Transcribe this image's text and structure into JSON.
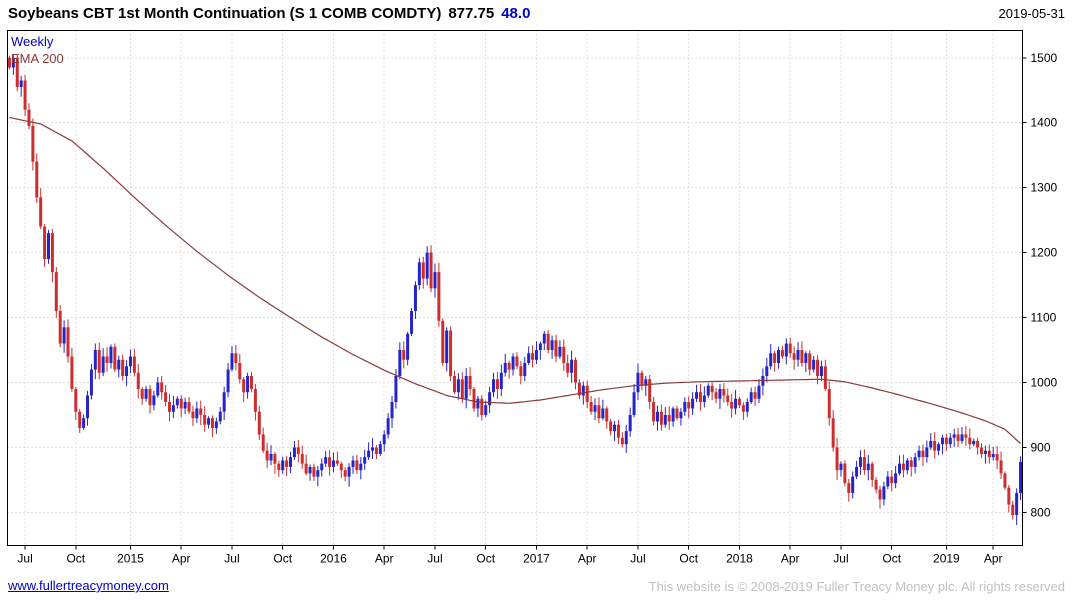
{
  "header": {
    "title": "Soybeans CBT 1st Month Continuation (S 1 COMB COMDTY)",
    "last_price": "877.75",
    "change": "48.0",
    "date": "2019-05-31"
  },
  "legend": {
    "timeframe": "Weekly",
    "indicator": "EMA 200"
  },
  "footer": {
    "link": "www.fullertreacymoney.com",
    "copyright": "This website is © 2008-2019 Fuller Treacy Money plc. All rights reserved"
  },
  "colors": {
    "up": "#2424c8",
    "down": "#cc2e2e",
    "ema": "#8b3a3a",
    "grid": "#c6c6c6",
    "link": "#0000cc",
    "muted": "#c0c0c0",
    "text": "#000000"
  },
  "chart_data": {
    "type": "candlestick",
    "title": "Soybeans CBT 1st Month Continuation (S 1 COMB COMDTY)",
    "timeframe": "Weekly",
    "indicator": "EMA 200",
    "last": 877.75,
    "change": 48.0,
    "date": "2019-05-31",
    "grid": "dotted",
    "y_ticks": [
      800,
      900,
      1000,
      1100,
      1200,
      1300,
      1400,
      1500
    ],
    "y_range": [
      749,
      1542
    ],
    "x_ticks": [
      {
        "label": "Jul",
        "week": 4
      },
      {
        "label": "Oct",
        "week": 17
      },
      {
        "label": "2015",
        "week": 31
      },
      {
        "label": "Apr",
        "week": 44
      },
      {
        "label": "Jul",
        "week": 57
      },
      {
        "label": "Oct",
        "week": 70
      },
      {
        "label": "2016",
        "week": 83
      },
      {
        "label": "Apr",
        "week": 96
      },
      {
        "label": "Jul",
        "week": 109
      },
      {
        "label": "Oct",
        "week": 122
      },
      {
        "label": "2017",
        "week": 135
      },
      {
        "label": "Apr",
        "week": 148
      },
      {
        "label": "Jul",
        "week": 161
      },
      {
        "label": "Oct",
        "week": 174
      },
      {
        "label": "2018",
        "week": 187
      },
      {
        "label": "Apr",
        "week": 200
      },
      {
        "label": "Jul",
        "week": 213
      },
      {
        "label": "Oct",
        "week": 226
      },
      {
        "label": "2019",
        "week": 240
      },
      {
        "label": "Apr",
        "week": 252
      }
    ],
    "first_open": 1500,
    "weekly_closes": [
      1485,
      1500,
      1455,
      1465,
      1420,
      1395,
      1340,
      1285,
      1240,
      1190,
      1230,
      1170,
      1110,
      1060,
      1085,
      1040,
      990,
      955,
      930,
      945,
      980,
      1020,
      1050,
      1015,
      1040,
      1030,
      1055,
      1020,
      1035,
      1010,
      1025,
      1040,
      1015,
      990,
      975,
      990,
      965,
      980,
      1000,
      985,
      970,
      955,
      965,
      975,
      960,
      970,
      955,
      945,
      960,
      950,
      935,
      945,
      930,
      940,
      955,
      985,
      1020,
      1045,
      1030,
      1005,
      985,
      1010,
      990,
      955,
      920,
      895,
      880,
      890,
      875,
      865,
      880,
      870,
      885,
      900,
      890,
      875,
      860,
      870,
      855,
      865,
      875,
      885,
      870,
      880,
      875,
      865,
      855,
      870,
      880,
      865,
      875,
      885,
      895,
      900,
      890,
      905,
      920,
      945,
      970,
      1010,
      1050,
      1035,
      1075,
      1110,
      1150,
      1185,
      1160,
      1200,
      1145,
      1170,
      1095,
      1030,
      1080,
      1010,
      985,
      1005,
      975,
      1010,
      990,
      960,
      975,
      950,
      965,
      985,
      1005,
      990,
      1015,
      1030,
      1020,
      1040,
      1025,
      1010,
      1030,
      1045,
      1035,
      1050,
      1060,
      1075,
      1050,
      1065,
      1040,
      1055,
      1030,
      1015,
      1035,
      1000,
      980,
      995,
      970,
      955,
      965,
      945,
      960,
      940,
      925,
      935,
      915,
      905,
      925,
      950,
      985,
      1015,
      995,
      1005,
      970,
      940,
      955,
      935,
      950,
      940,
      960,
      945,
      955,
      970,
      960,
      975,
      985,
      970,
      980,
      995,
      985,
      975,
      990,
      980,
      970,
      960,
      975,
      965,
      955,
      970,
      985,
      975,
      995,
      1010,
      1025,
      1045,
      1030,
      1050,
      1040,
      1060,
      1045,
      1035,
      1050,
      1030,
      1045,
      1020,
      1035,
      1010,
      1025,
      990,
      945,
      900,
      865,
      875,
      845,
      830,
      855,
      870,
      885,
      865,
      875,
      850,
      835,
      820,
      840,
      855,
      845,
      860,
      875,
      865,
      880,
      870,
      885,
      895,
      885,
      900,
      910,
      895,
      905,
      915,
      905,
      915,
      920,
      910,
      920,
      915,
      905,
      910,
      900,
      890,
      895,
      885,
      890,
      880,
      860,
      838,
      812,
      796,
      829.75,
      877.75
    ],
    "ema_200": [
      [
        0,
        1408
      ],
      [
        8,
        1398
      ],
      [
        16,
        1372
      ],
      [
        24,
        1330
      ],
      [
        32,
        1285
      ],
      [
        40,
        1242
      ],
      [
        48,
        1202
      ],
      [
        56,
        1165
      ],
      [
        64,
        1131
      ],
      [
        72,
        1100
      ],
      [
        80,
        1070
      ],
      [
        88,
        1043
      ],
      [
        96,
        1019
      ],
      [
        104,
        998
      ],
      [
        112,
        980
      ],
      [
        120,
        970
      ],
      [
        128,
        968
      ],
      [
        136,
        973
      ],
      [
        144,
        981
      ],
      [
        152,
        989
      ],
      [
        160,
        995
      ],
      [
        168,
        999
      ],
      [
        176,
        1001
      ],
      [
        184,
        1002
      ],
      [
        192,
        1003
      ],
      [
        200,
        1004
      ],
      [
        208,
        1005
      ],
      [
        214,
        1001
      ],
      [
        220,
        993
      ],
      [
        226,
        984
      ],
      [
        232,
        974
      ],
      [
        238,
        964
      ],
      [
        244,
        953
      ],
      [
        250,
        941
      ],
      [
        255,
        928
      ],
      [
        259,
        906
      ]
    ]
  }
}
